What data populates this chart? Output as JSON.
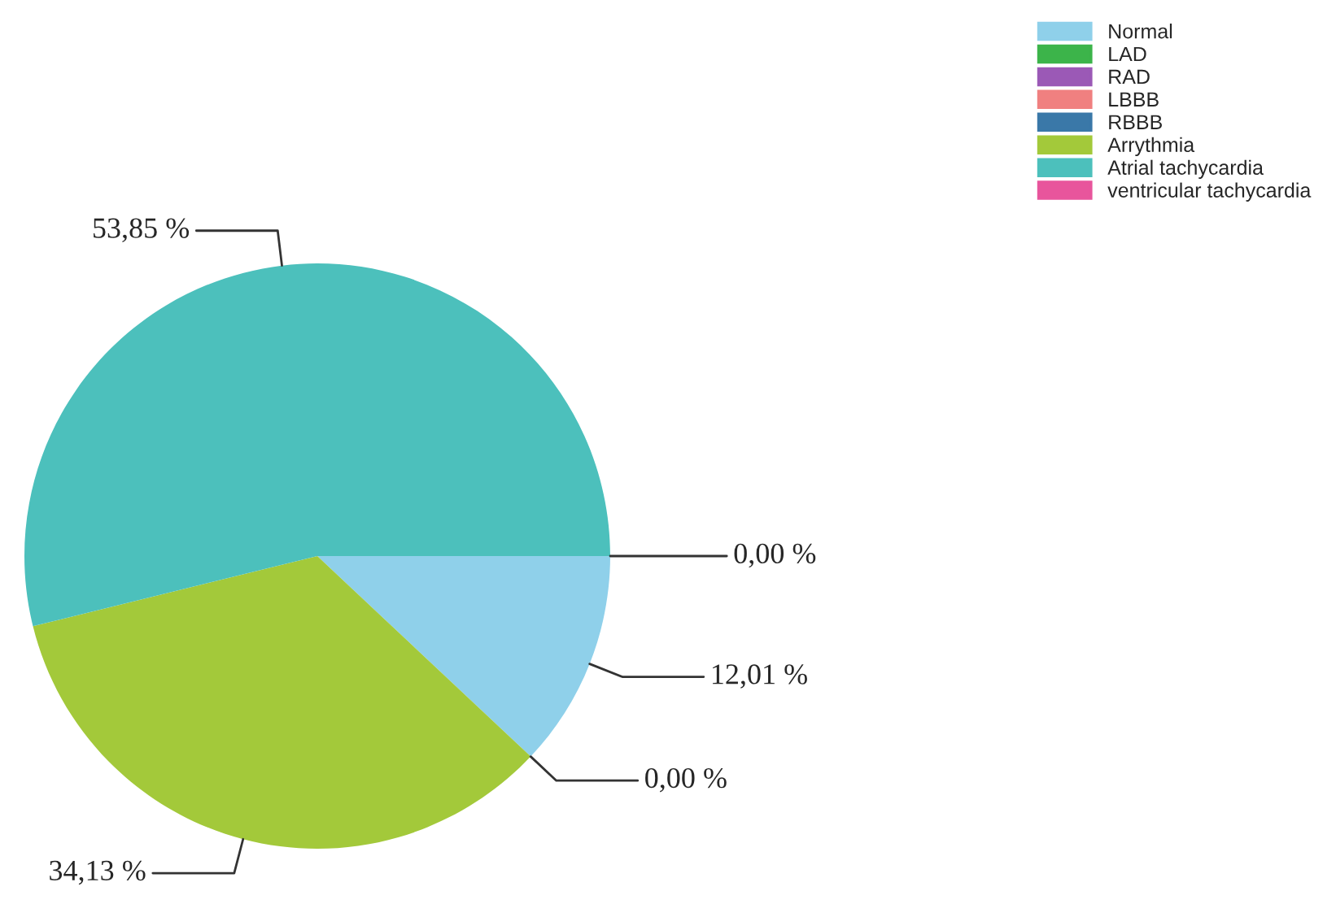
{
  "chart_data": {
    "type": "pie",
    "categories": [
      "Normal",
      "LAD",
      "RAD",
      "LBBB",
      "RBBB",
      "Arrythmia",
      "Atrial tachycardia",
      "ventricular tachycardia"
    ],
    "values": [
      12.01,
      0,
      0,
      0,
      0,
      34.13,
      53.85,
      0
    ],
    "colors": [
      "#8fd0ea",
      "#3cb44a",
      "#9b59b6",
      "#f08080",
      "#3a78a8",
      "#a3c93a",
      "#4cc0bc",
      "#e8559c"
    ],
    "value_labels": [
      "12,01 %",
      "0,00 %",
      null,
      null,
      null,
      "34,13 %",
      "53,85 %",
      "0,00 %"
    ],
    "legend": "top right"
  }
}
